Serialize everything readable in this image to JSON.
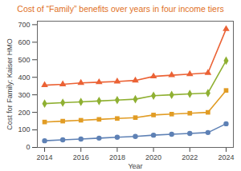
{
  "chart_data": {
    "type": "line",
    "title": "Cost of “Family” benefits over years in four income tiers",
    "x_label": "Year",
    "y_label": "Cost for Family: Kaiser HMO",
    "x": [
      2014,
      2015,
      2016,
      2017,
      2018,
      2019,
      2020,
      2021,
      2022,
      2023,
      2024
    ],
    "series": [
      {
        "color": "#5e81b5",
        "marker": "circle",
        "values": [
          38,
          43,
          48,
          53,
          58,
          63,
          70,
          75,
          80,
          85,
          135
        ]
      },
      {
        "color": "#e19c24",
        "marker": "square",
        "values": [
          145,
          150,
          155,
          160,
          165,
          170,
          185,
          190,
          195,
          200,
          325
        ]
      },
      {
        "color": "#8fb032",
        "marker": "diamond",
        "values": [
          250,
          255,
          260,
          265,
          270,
          275,
          295,
          300,
          305,
          310,
          495
        ]
      },
      {
        "color": "#eb6235",
        "marker": "triangle",
        "values": [
          355,
          360,
          368,
          372,
          376,
          382,
          405,
          412,
          418,
          425,
          675
        ]
      }
    ],
    "xlim": [
      2013.6,
      2024.4
    ],
    "xticks": [
      2014,
      2016,
      2018,
      2020,
      2022,
      2024
    ],
    "ylim": [
      0,
      720
    ],
    "yticks": [
      0,
      100,
      200,
      300,
      400,
      500,
      600,
      700
    ],
    "grid": false
  }
}
